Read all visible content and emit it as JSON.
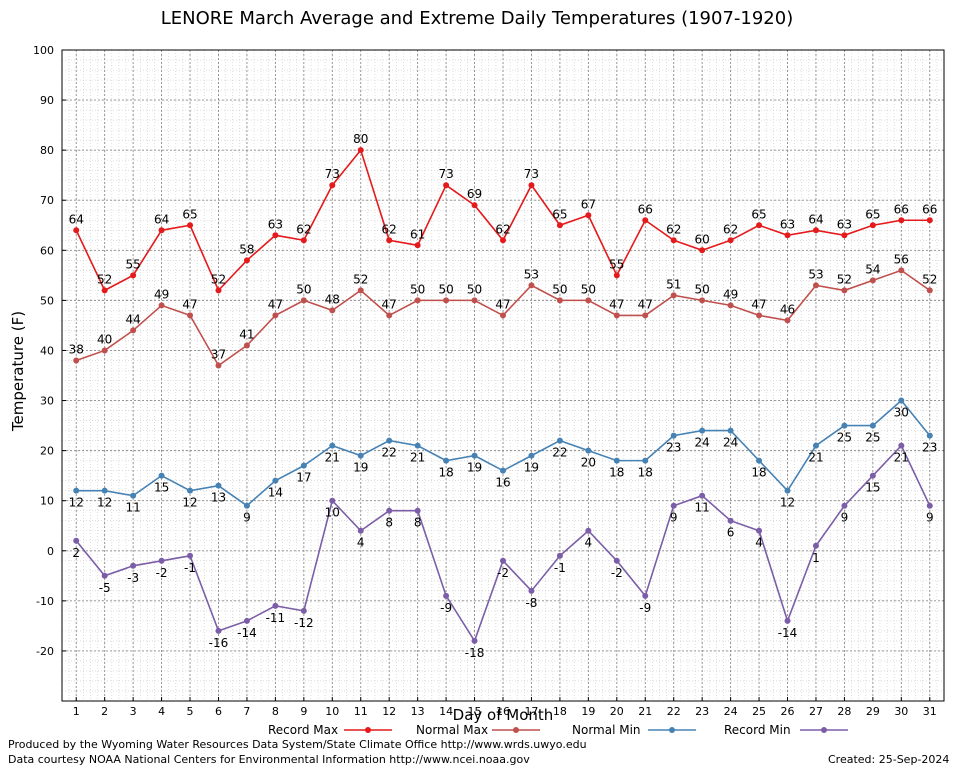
{
  "chart_data": {
    "type": "line",
    "title": "LENORE March Average and Extreme Daily Temperatures (1907-1920)",
    "xlabel": "Day of Month",
    "ylabel": "Temperature (F)",
    "xlim": [
      1,
      31
    ],
    "ylim": [
      -30,
      100
    ],
    "yticks": [
      -20,
      -10,
      0,
      10,
      20,
      30,
      40,
      50,
      60,
      70,
      80,
      90,
      100
    ],
    "x": [
      1,
      2,
      3,
      4,
      5,
      6,
      7,
      8,
      9,
      10,
      11,
      12,
      13,
      14,
      15,
      16,
      17,
      18,
      19,
      20,
      21,
      22,
      23,
      24,
      25,
      26,
      27,
      28,
      29,
      30,
      31
    ],
    "grid": true,
    "legend_position": "bottom",
    "series": [
      {
        "name": "Record Max",
        "color": "#e41a1c",
        "label_pos": "above",
        "values": [
          64,
          52,
          55,
          64,
          65,
          52,
          58,
          63,
          62,
          73,
          80,
          62,
          61,
          73,
          69,
          62,
          73,
          65,
          67,
          55,
          66,
          62,
          60,
          62,
          65,
          63,
          64,
          63,
          65,
          66,
          66
        ]
      },
      {
        "name": "Normal Max",
        "color": "#c0504d",
        "label_pos": "above",
        "values": [
          38,
          40,
          44,
          49,
          47,
          37,
          41,
          47,
          50,
          48,
          52,
          47,
          50,
          50,
          50,
          47,
          53,
          50,
          50,
          47,
          47,
          51,
          50,
          49,
          47,
          46,
          53,
          52,
          54,
          56,
          52
        ]
      },
      {
        "name": "Normal Min",
        "color": "#4682b4",
        "label_pos": "below",
        "values": [
          12,
          12,
          11,
          15,
          12,
          13,
          9,
          14,
          17,
          21,
          19,
          22,
          21,
          18,
          19,
          16,
          19,
          22,
          20,
          18,
          18,
          23,
          24,
          24,
          18,
          12,
          21,
          25,
          25,
          30,
          23
        ]
      },
      {
        "name": "Record Min",
        "color": "#7b5ea7",
        "label_pos": "below",
        "values": [
          2,
          -5,
          -3,
          -2,
          -1,
          -16,
          -14,
          -11,
          -12,
          10,
          4,
          8,
          8,
          -9,
          -18,
          -2,
          -8,
          -1,
          4,
          -2,
          -9,
          9,
          11,
          6,
          4,
          -14,
          1,
          9,
          15,
          21,
          9
        ]
      }
    ]
  },
  "footer": {
    "line1": "Produced by the Wyoming Water Resources Data System/State Climate Office http://www.wrds.uwyo.edu",
    "line2": "Data courtesy NOAA National Centers for Environmental Information http://www.ncei.noaa.gov",
    "created": "Created:  25-Sep-2024"
  }
}
